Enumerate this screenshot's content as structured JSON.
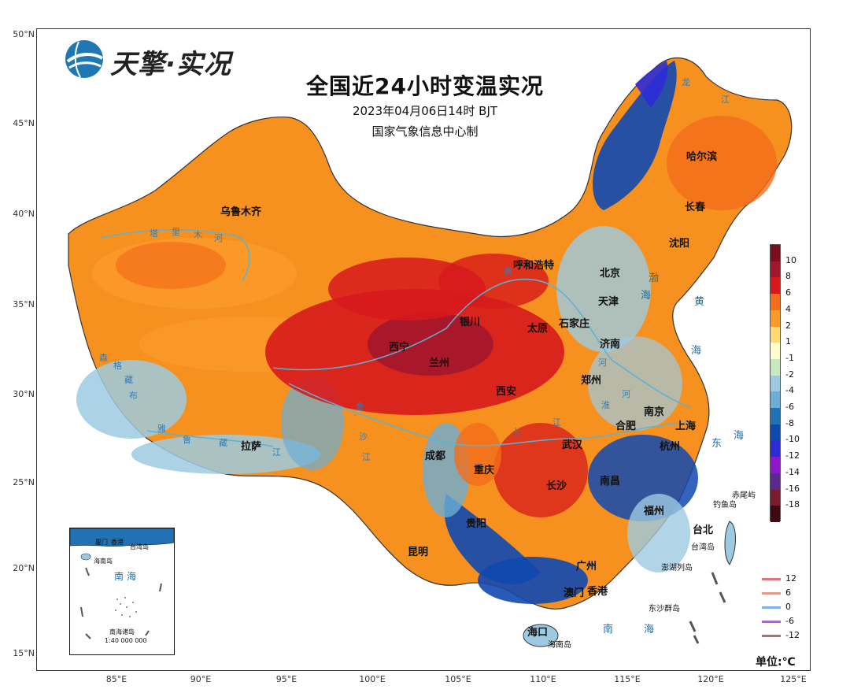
{
  "logo": {
    "text": "天擎·实况"
  },
  "title": "全国近24小时变温实况",
  "subtitle": "2023年04月06日14时 BJT",
  "producer": "国家气象信息中心制",
  "unit_label": "单位:℃",
  "axes": {
    "lat_labels": [
      "50°N",
      "45°N",
      "40°N",
      "35°N",
      "30°N",
      "25°N",
      "20°N",
      "15°N"
    ],
    "lon_labels": [
      "85°E",
      "90°E",
      "95°E",
      "100°E",
      "105°E",
      "110°E",
      "115°E",
      "120°E",
      "125°E"
    ]
  },
  "legend": {
    "labels": [
      "10",
      "8",
      "6",
      "4",
      "2",
      "1",
      "-1",
      "-2",
      "-4",
      "-6",
      "-8",
      "-10",
      "-12",
      "-14",
      "-16",
      "-18"
    ],
    "colors": [
      "#7a0f1f",
      "#a3172c",
      "#d7191c",
      "#f46d1a",
      "#fb9a29",
      "#fed976",
      "#ffffcc",
      "#c7e9c0",
      "#9ecae1",
      "#6baed6",
      "#2171b5",
      "#1148b0",
      "#2e2bd6",
      "#8b18c9",
      "#5a2a8a",
      "#7a1c2c",
      "#3d0a12"
    ]
  },
  "line_legend": {
    "labels": [
      "12",
      "6",
      "0",
      "-6",
      "-12"
    ],
    "colors": [
      "#d9787f",
      "#e89a8a",
      "#7fb3e6",
      "#a070c0",
      "#9a7a7a"
    ]
  },
  "cities": [
    {
      "name": "乌鲁木齐"
    },
    {
      "name": "呼和浩特"
    },
    {
      "name": "北京"
    },
    {
      "name": "天津"
    },
    {
      "name": "石家庄"
    },
    {
      "name": "太原"
    },
    {
      "name": "济南"
    },
    {
      "name": "银川"
    },
    {
      "name": "西宁"
    },
    {
      "name": "兰州"
    },
    {
      "name": "西安"
    },
    {
      "name": "郑州"
    },
    {
      "name": "南京"
    },
    {
      "name": "合肥"
    },
    {
      "name": "上海"
    },
    {
      "name": "杭州"
    },
    {
      "name": "武汉"
    },
    {
      "name": "成都"
    },
    {
      "name": "重庆"
    },
    {
      "name": "长沙"
    },
    {
      "name": "南昌"
    },
    {
      "name": "福州"
    },
    {
      "name": "贵阳"
    },
    {
      "name": "昆明"
    },
    {
      "name": "广州"
    },
    {
      "name": "澳门"
    },
    {
      "name": "香港"
    },
    {
      "name": "海口"
    },
    {
      "name": "台北"
    },
    {
      "name": "拉萨"
    },
    {
      "name": "哈尔滨"
    },
    {
      "name": "长春"
    },
    {
      "name": "沈阳"
    }
  ],
  "seas": [
    {
      "name": "渤"
    },
    {
      "name": "海"
    },
    {
      "name": "黄"
    },
    {
      "name": "海"
    },
    {
      "name": "东"
    },
    {
      "name": "海"
    },
    {
      "name": "南"
    },
    {
      "name": "海"
    }
  ],
  "islands": [
    {
      "name": "赤尾屿"
    },
    {
      "name": "钓鱼岛"
    },
    {
      "name": "台湾岛"
    },
    {
      "name": "澎湖列岛"
    },
    {
      "name": "东沙群岛"
    },
    {
      "name": "海南岛"
    }
  ],
  "rivers": [
    {
      "name": "塔"
    },
    {
      "name": "里"
    },
    {
      "name": "木"
    },
    {
      "name": "河"
    },
    {
      "name": "森"
    },
    {
      "name": "格"
    },
    {
      "name": "藏"
    },
    {
      "name": "布"
    },
    {
      "name": "雅"
    },
    {
      "name": "鲁"
    },
    {
      "name": "藏"
    },
    {
      "name": "江"
    },
    {
      "name": "黄"
    },
    {
      "name": "河"
    },
    {
      "name": "淮"
    },
    {
      "name": "河"
    },
    {
      "name": "金"
    },
    {
      "name": "沙"
    },
    {
      "name": "江"
    },
    {
      "name": "长"
    },
    {
      "name": "江"
    },
    {
      "name": "龙"
    },
    {
      "name": "江"
    }
  ],
  "inset": {
    "labels": [
      "厦门",
      "香港",
      "台湾岛",
      "海南岛",
      "南",
      "海",
      "南海诸岛",
      "1:40 000 000"
    ]
  }
}
